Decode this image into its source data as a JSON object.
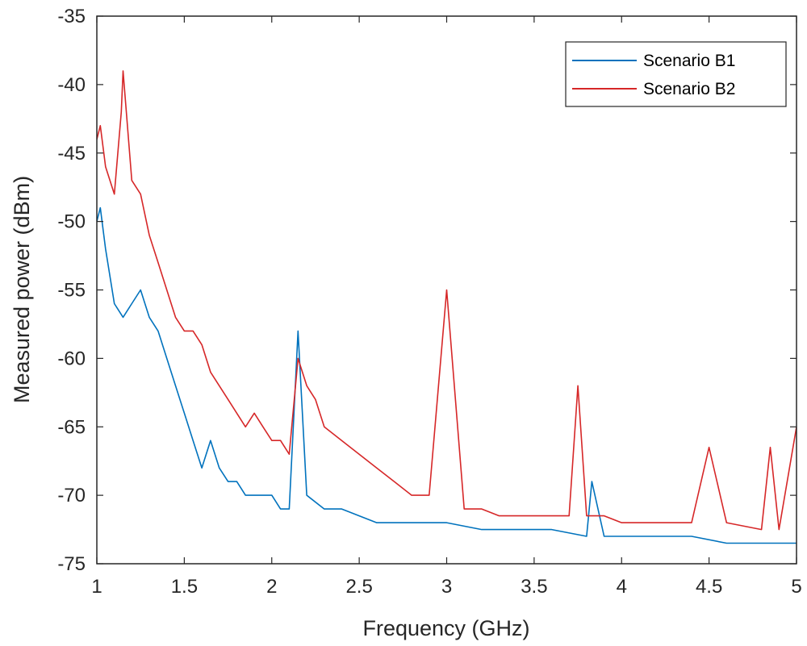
{
  "chart_data": {
    "type": "line",
    "title": "",
    "xlabel": "Frequency (GHz)",
    "ylabel": "Measured power (dBm)",
    "xlim": [
      1,
      5
    ],
    "ylim": [
      -75,
      -35
    ],
    "xticks": [
      "1",
      "1.5",
      "2",
      "2.5",
      "3",
      "3.5",
      "4",
      "4.5",
      "5"
    ],
    "yticks": [
      "-35",
      "-40",
      "-45",
      "-50",
      "-55",
      "-60",
      "-65",
      "-70",
      "-75"
    ],
    "grid": false,
    "legend_position": "top-right",
    "series": [
      {
        "name": "Scenario B1",
        "color": "#0072BD",
        "x": [
          1.0,
          1.02,
          1.05,
          1.1,
          1.15,
          1.2,
          1.25,
          1.3,
          1.35,
          1.4,
          1.45,
          1.5,
          1.55,
          1.6,
          1.65,
          1.7,
          1.75,
          1.8,
          1.85,
          1.9,
          1.95,
          2.0,
          2.05,
          2.1,
          2.15,
          2.2,
          2.3,
          2.4,
          2.5,
          2.6,
          2.7,
          2.8,
          2.9,
          3.0,
          3.2,
          3.4,
          3.6,
          3.8,
          3.83,
          3.9,
          4.0,
          4.2,
          4.4,
          4.6,
          4.8,
          5.0
        ],
        "y": [
          -50,
          -49,
          -52,
          -56,
          -57,
          -56,
          -55,
          -57,
          -58,
          -60,
          -62,
          -64,
          -66,
          -68,
          -66,
          -68,
          -69,
          -69,
          -70,
          -70,
          -70,
          -70,
          -71,
          -71,
          -58,
          -70,
          -71,
          -71,
          -71.5,
          -72,
          -72,
          -72,
          -72,
          -72,
          -72.5,
          -72.5,
          -72.5,
          -73,
          -69,
          -73,
          -73,
          -73,
          -73,
          -73.5,
          -73.5,
          -73.5
        ]
      },
      {
        "name": "Scenario B2",
        "color": "#D62728",
        "x": [
          1.0,
          1.02,
          1.05,
          1.1,
          1.14,
          1.15,
          1.2,
          1.25,
          1.3,
          1.35,
          1.4,
          1.45,
          1.5,
          1.55,
          1.6,
          1.65,
          1.7,
          1.75,
          1.8,
          1.85,
          1.9,
          1.95,
          2.0,
          2.05,
          2.1,
          2.15,
          2.2,
          2.25,
          2.3,
          2.4,
          2.5,
          2.6,
          2.7,
          2.8,
          2.9,
          3.0,
          3.1,
          3.2,
          3.3,
          3.4,
          3.5,
          3.6,
          3.7,
          3.75,
          3.8,
          3.9,
          4.0,
          4.2,
          4.4,
          4.5,
          4.6,
          4.8,
          4.85,
          4.9,
          5.0
        ],
        "y": [
          -44,
          -43,
          -46,
          -48,
          -42,
          -39,
          -47,
          -48,
          -51,
          -53,
          -55,
          -57,
          -58,
          -58,
          -59,
          -61,
          -62,
          -63,
          -64,
          -65,
          -64,
          -65,
          -66,
          -66,
          -67,
          -60,
          -62,
          -63,
          -65,
          -66,
          -67,
          -68,
          -69,
          -70,
          -70,
          -55,
          -71,
          -71,
          -71.5,
          -71.5,
          -71.5,
          -71.5,
          -71.5,
          -62,
          -71.5,
          -71.5,
          -72,
          -72,
          -72,
          -66.5,
          -72,
          -72.5,
          -66.5,
          -72.5,
          -65
        ]
      }
    ]
  }
}
